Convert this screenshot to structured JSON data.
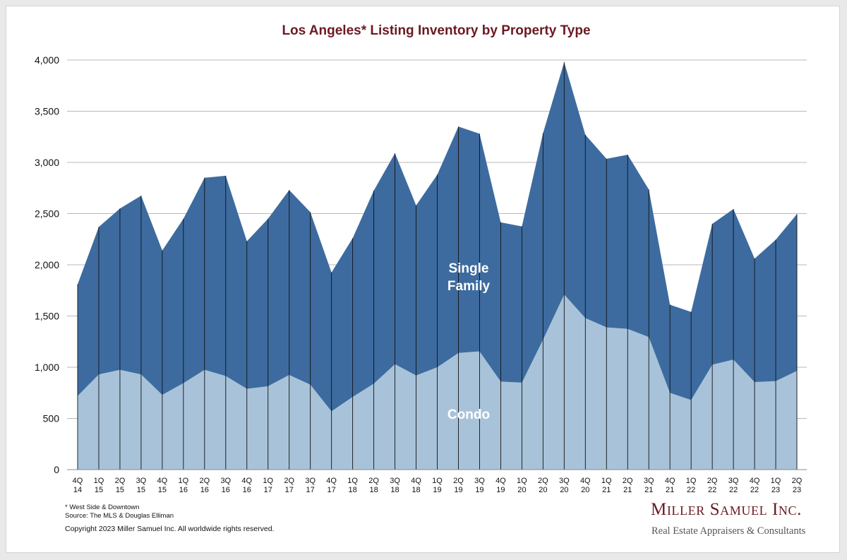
{
  "chart_data": {
    "type": "area",
    "stacked": true,
    "title": "Los Angeles* Listing Inventory by Property Type",
    "categories": [
      [
        "4Q",
        "14"
      ],
      [
        "1Q",
        "15"
      ],
      [
        "2Q",
        "15"
      ],
      [
        "3Q",
        "15"
      ],
      [
        "4Q",
        "15"
      ],
      [
        "1Q",
        "16"
      ],
      [
        "2Q",
        "16"
      ],
      [
        "3Q",
        "16"
      ],
      [
        "4Q",
        "16"
      ],
      [
        "1Q",
        "17"
      ],
      [
        "2Q",
        "17"
      ],
      [
        "3Q",
        "17"
      ],
      [
        "4Q",
        "17"
      ],
      [
        "1Q",
        "18"
      ],
      [
        "2Q",
        "18"
      ],
      [
        "3Q",
        "18"
      ],
      [
        "4Q",
        "18"
      ],
      [
        "1Q",
        "19"
      ],
      [
        "2Q",
        "19"
      ],
      [
        "3Q",
        "19"
      ],
      [
        "4Q",
        "19"
      ],
      [
        "1Q",
        "20"
      ],
      [
        "2Q",
        "20"
      ],
      [
        "3Q",
        "20"
      ],
      [
        "4Q",
        "20"
      ],
      [
        "1Q",
        "21"
      ],
      [
        "2Q",
        "21"
      ],
      [
        "3Q",
        "21"
      ],
      [
        "4Q",
        "21"
      ],
      [
        "1Q",
        "22"
      ],
      [
        "2Q",
        "22"
      ],
      [
        "3Q",
        "22"
      ],
      [
        "4Q",
        "22"
      ],
      [
        "1Q",
        "23"
      ],
      [
        "2Q",
        "23"
      ]
    ],
    "series": [
      {
        "name": "Condo",
        "color": "#a8c3d9",
        "values": [
          720,
          930,
          975,
          930,
          730,
          845,
          975,
          915,
          790,
          815,
          925,
          830,
          570,
          710,
          840,
          1030,
          920,
          1000,
          1140,
          1155,
          860,
          850,
          1270,
          1710,
          1480,
          1390,
          1375,
          1295,
          750,
          680,
          1025,
          1075,
          855,
          865,
          965
        ]
      },
      {
        "name": "Single Family",
        "color": "#3d6b9f",
        "values": [
          1090,
          1440,
          1575,
          1745,
          1410,
          1605,
          1875,
          1955,
          1440,
          1635,
          1805,
          1685,
          1355,
          1550,
          1885,
          2060,
          1660,
          1880,
          2210,
          2125,
          1555,
          1525,
          2015,
          2270,
          1790,
          1645,
          1700,
          1440,
          860,
          860,
          1375,
          1470,
          1205,
          1380,
          1530
        ]
      }
    ],
    "y_ticks": [
      "0",
      "500",
      "1,000",
      "1,500",
      "2,000",
      "2,500",
      "3,000",
      "3,500",
      "4,000"
    ],
    "ylim": [
      0,
      4000
    ],
    "grid": true,
    "series_labels": {
      "single_family": [
        "Single",
        "Family"
      ],
      "condo": "Condo"
    }
  },
  "footer": {
    "note": "* West Side & Downtown",
    "source": "Source: The MLS & Douglas Elliman",
    "copyright": "Copyright 2023 Miller Samuel Inc.  All worldwide rights reserved."
  },
  "brand": {
    "name": "Miller Samuel Inc.",
    "tagline": "Real Estate Appraisers & Consultants"
  }
}
